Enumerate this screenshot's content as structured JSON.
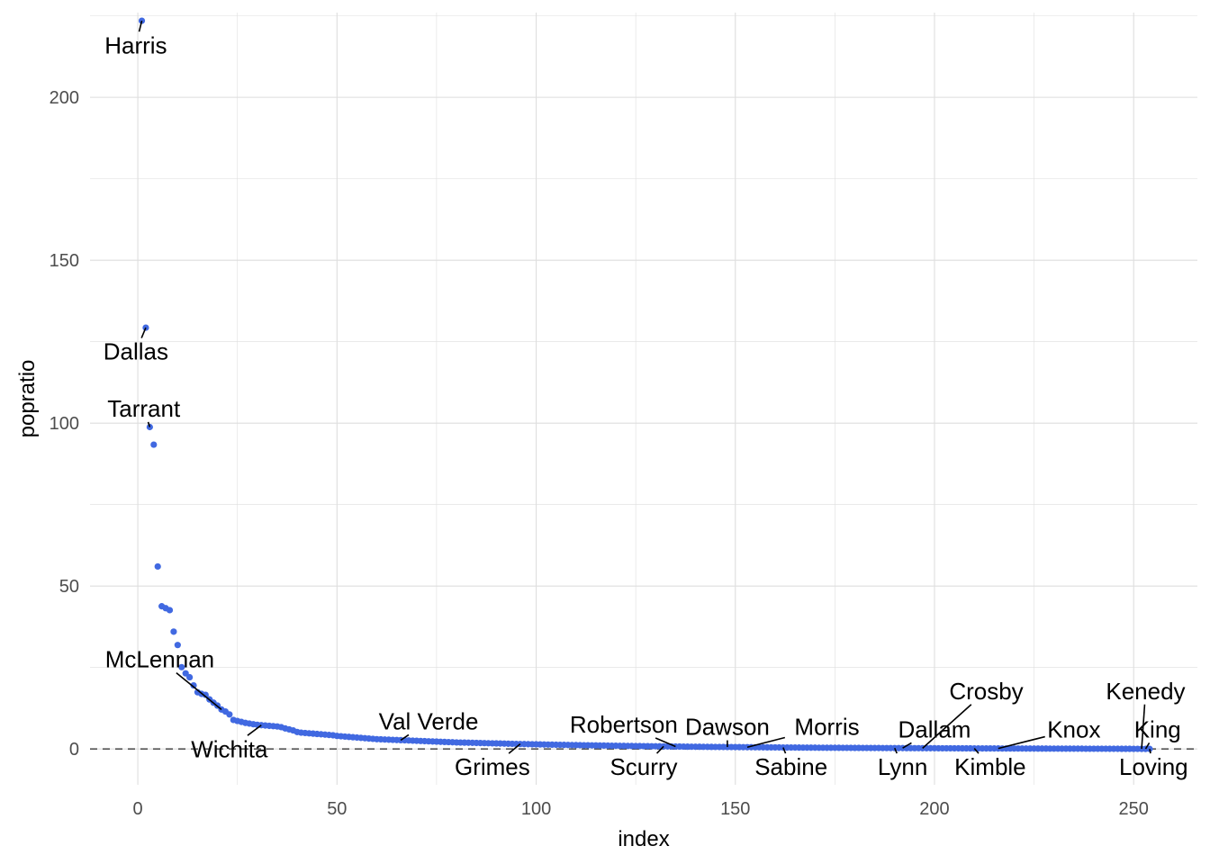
{
  "chart_data": {
    "type": "scatter",
    "title": "",
    "xlabel": "index",
    "ylabel": "popratio",
    "xlim": [
      -12,
      266
    ],
    "ylim": [
      -11,
      226
    ],
    "x_ticks": [
      0,
      50,
      100,
      150,
      200,
      250
    ],
    "y_ticks": [
      0,
      50,
      100,
      150,
      200
    ],
    "x_tick_labels": [
      "0",
      "50",
      "100",
      "150",
      "200",
      "250"
    ],
    "y_tick_labels": [
      "0",
      "50",
      "100",
      "150",
      "200"
    ],
    "grid": true,
    "reference_line": {
      "y": 0,
      "style": "dashed"
    },
    "point_color": "#4169E1",
    "series": [
      {
        "points": [
          [
            1,
            223.5
          ],
          [
            2,
            129.3
          ],
          [
            3,
            98.8
          ],
          [
            4,
            93.4
          ],
          [
            5,
            56.0
          ],
          [
            6,
            43.8
          ],
          [
            7,
            43.2
          ],
          [
            8,
            42.6
          ],
          [
            9,
            36.0
          ],
          [
            10,
            31.9
          ],
          [
            11,
            25.1
          ],
          [
            12,
            23.2
          ],
          [
            13,
            22.0
          ],
          [
            14,
            19.5
          ],
          [
            15,
            17.4
          ],
          [
            16,
            16.9
          ],
          [
            17,
            16.6
          ],
          [
            18,
            15.2
          ],
          [
            19,
            14.2
          ],
          [
            20,
            13.3
          ],
          [
            21,
            12.1
          ],
          [
            22,
            11.5
          ],
          [
            23,
            10.6
          ],
          [
            24,
            8.9
          ],
          [
            25,
            8.6
          ],
          [
            26,
            8.3
          ],
          [
            27,
            8.0
          ],
          [
            28,
            7.8
          ],
          [
            29,
            7.6
          ],
          [
            30,
            7.4
          ],
          [
            31,
            7.3
          ],
          [
            32,
            7.2
          ],
          [
            33,
            7.1
          ],
          [
            34,
            7.0
          ],
          [
            35,
            6.9
          ],
          [
            36,
            6.7
          ],
          [
            37,
            6.3
          ],
          [
            38,
            6.0
          ],
          [
            39,
            5.7
          ],
          [
            40,
            5.2
          ],
          [
            41,
            5.0
          ],
          [
            42,
            4.9
          ],
          [
            43,
            4.8
          ],
          [
            44,
            4.7
          ],
          [
            45,
            4.6
          ],
          [
            46,
            4.5
          ],
          [
            47,
            4.4
          ],
          [
            48,
            4.3
          ],
          [
            49,
            4.2
          ],
          [
            50,
            4.0
          ],
          [
            51,
            3.9
          ],
          [
            52,
            3.8
          ],
          [
            53,
            3.7
          ],
          [
            54,
            3.6
          ],
          [
            55,
            3.5
          ],
          [
            56,
            3.4
          ],
          [
            57,
            3.3
          ],
          [
            58,
            3.2
          ],
          [
            59,
            3.1
          ],
          [
            60,
            3.0
          ],
          [
            61,
            2.95
          ],
          [
            62,
            2.9
          ],
          [
            63,
            2.85
          ],
          [
            64,
            2.8
          ],
          [
            65,
            2.75
          ],
          [
            66,
            2.7
          ],
          [
            67,
            2.65
          ],
          [
            68,
            2.6
          ],
          [
            69,
            2.55
          ],
          [
            70,
            2.5
          ],
          [
            71,
            2.45
          ],
          [
            72,
            2.4
          ],
          [
            73,
            2.35
          ],
          [
            74,
            2.3
          ],
          [
            75,
            2.25
          ],
          [
            76,
            2.2
          ],
          [
            77,
            2.15
          ],
          [
            78,
            2.1
          ],
          [
            79,
            2.05
          ],
          [
            80,
            2.0
          ],
          [
            81,
            1.97
          ],
          [
            82,
            1.94
          ],
          [
            83,
            1.91
          ],
          [
            84,
            1.88
          ],
          [
            85,
            1.85
          ],
          [
            86,
            1.82
          ],
          [
            87,
            1.79
          ],
          [
            88,
            1.76
          ],
          [
            89,
            1.73
          ],
          [
            90,
            1.7
          ],
          [
            91,
            1.67
          ],
          [
            92,
            1.64
          ],
          [
            93,
            1.61
          ],
          [
            94,
            1.58
          ],
          [
            95,
            1.55
          ],
          [
            96,
            1.52
          ],
          [
            97,
            1.5
          ],
          [
            98,
            1.47
          ],
          [
            99,
            1.44
          ],
          [
            100,
            1.42
          ],
          [
            101,
            1.39
          ],
          [
            102,
            1.37
          ],
          [
            103,
            1.34
          ],
          [
            104,
            1.32
          ],
          [
            105,
            1.29
          ],
          [
            106,
            1.27
          ],
          [
            107,
            1.25
          ],
          [
            108,
            1.22
          ],
          [
            109,
            1.2
          ],
          [
            110,
            1.18
          ],
          [
            111,
            1.16
          ],
          [
            112,
            1.14
          ],
          [
            113,
            1.12
          ],
          [
            114,
            1.1
          ],
          [
            115,
            1.08
          ],
          [
            116,
            1.06
          ],
          [
            117,
            1.04
          ],
          [
            118,
            1.02
          ],
          [
            119,
            1.0
          ],
          [
            120,
            0.98
          ],
          [
            121,
            0.96
          ],
          [
            122,
            0.95
          ],
          [
            123,
            0.93
          ],
          [
            124,
            0.91
          ],
          [
            125,
            0.9
          ],
          [
            126,
            0.88
          ],
          [
            127,
            0.86
          ],
          [
            128,
            0.85
          ],
          [
            129,
            0.83
          ],
          [
            130,
            0.82
          ],
          [
            131,
            0.8
          ],
          [
            132,
            0.79
          ],
          [
            133,
            0.77
          ],
          [
            134,
            0.76
          ],
          [
            135,
            0.74
          ],
          [
            136,
            0.73
          ],
          [
            137,
            0.72
          ],
          [
            138,
            0.7
          ],
          [
            139,
            0.69
          ],
          [
            140,
            0.68
          ],
          [
            141,
            0.67
          ],
          [
            142,
            0.65
          ],
          [
            143,
            0.64
          ],
          [
            144,
            0.63
          ],
          [
            145,
            0.62
          ],
          [
            146,
            0.61
          ],
          [
            147,
            0.6
          ],
          [
            148,
            0.59
          ],
          [
            149,
            0.58
          ],
          [
            150,
            0.57
          ],
          [
            151,
            0.56
          ],
          [
            152,
            0.55
          ],
          [
            153,
            0.54
          ],
          [
            154,
            0.53
          ],
          [
            155,
            0.52
          ],
          [
            156,
            0.51
          ],
          [
            157,
            0.5
          ],
          [
            158,
            0.49
          ],
          [
            159,
            0.48
          ],
          [
            160,
            0.47
          ],
          [
            161,
            0.46
          ],
          [
            162,
            0.45
          ],
          [
            163,
            0.45
          ],
          [
            164,
            0.44
          ],
          [
            165,
            0.43
          ],
          [
            166,
            0.42
          ],
          [
            167,
            0.41
          ],
          [
            168,
            0.41
          ],
          [
            169,
            0.4
          ],
          [
            170,
            0.39
          ],
          [
            171,
            0.38
          ],
          [
            172,
            0.38
          ],
          [
            173,
            0.37
          ],
          [
            174,
            0.36
          ],
          [
            175,
            0.36
          ],
          [
            176,
            0.35
          ],
          [
            177,
            0.34
          ],
          [
            178,
            0.34
          ],
          [
            179,
            0.33
          ],
          [
            180,
            0.32
          ],
          [
            181,
            0.32
          ],
          [
            182,
            0.31
          ],
          [
            183,
            0.31
          ],
          [
            184,
            0.3
          ],
          [
            185,
            0.29
          ],
          [
            186,
            0.29
          ],
          [
            187,
            0.28
          ],
          [
            188,
            0.28
          ],
          [
            189,
            0.27
          ],
          [
            190,
            0.27
          ],
          [
            191,
            0.26
          ],
          [
            192,
            0.26
          ],
          [
            193,
            0.25
          ],
          [
            194,
            0.25
          ],
          [
            195,
            0.24
          ],
          [
            196,
            0.24
          ],
          [
            197,
            0.23
          ],
          [
            198,
            0.23
          ],
          [
            199,
            0.22
          ],
          [
            200,
            0.22
          ],
          [
            201,
            0.21
          ],
          [
            202,
            0.21
          ],
          [
            203,
            0.2
          ],
          [
            204,
            0.2
          ],
          [
            205,
            0.19
          ],
          [
            206,
            0.19
          ],
          [
            207,
            0.18
          ],
          [
            208,
            0.18
          ],
          [
            209,
            0.18
          ],
          [
            210,
            0.17
          ],
          [
            211,
            0.17
          ],
          [
            212,
            0.16
          ],
          [
            213,
            0.16
          ],
          [
            214,
            0.16
          ],
          [
            215,
            0.15
          ],
          [
            216,
            0.15
          ],
          [
            217,
            0.14
          ],
          [
            218,
            0.14
          ],
          [
            219,
            0.14
          ],
          [
            220,
            0.13
          ],
          [
            221,
            0.13
          ],
          [
            222,
            0.13
          ],
          [
            223,
            0.12
          ],
          [
            224,
            0.12
          ],
          [
            225,
            0.12
          ],
          [
            226,
            0.11
          ],
          [
            227,
            0.11
          ],
          [
            228,
            0.11
          ],
          [
            229,
            0.1
          ],
          [
            230,
            0.1
          ],
          [
            231,
            0.1
          ],
          [
            232,
            0.09
          ],
          [
            233,
            0.09
          ],
          [
            234,
            0.09
          ],
          [
            235,
            0.08
          ],
          [
            236,
            0.08
          ],
          [
            237,
            0.08
          ],
          [
            238,
            0.07
          ],
          [
            239,
            0.07
          ],
          [
            240,
            0.07
          ],
          [
            241,
            0.06
          ],
          [
            242,
            0.06
          ],
          [
            243,
            0.06
          ],
          [
            244,
            0.05
          ],
          [
            245,
            0.05
          ],
          [
            246,
            0.05
          ],
          [
            247,
            0.04
          ],
          [
            248,
            0.04
          ],
          [
            249,
            0.04
          ],
          [
            250,
            0.03
          ],
          [
            251,
            0.03
          ],
          [
            252,
            0.02
          ],
          [
            253,
            0.02
          ],
          [
            254,
            0.01
          ]
        ]
      }
    ],
    "annotations": [
      {
        "text": "Harris",
        "point": [
          1,
          223.5
        ],
        "label": [
          -0.5,
          216.0
        ]
      },
      {
        "text": "Dallas",
        "point": [
          2,
          129.3
        ],
        "label": [
          -0.5,
          122.0
        ]
      },
      {
        "text": "Tarrant",
        "point": [
          3,
          98.8
        ],
        "label": [
          1.5,
          104.5
        ]
      },
      {
        "text": "McLennan",
        "point": [
          21,
          12.1
        ],
        "label": [
          5.5,
          27.5
        ]
      },
      {
        "text": "Wichita",
        "point": [
          31,
          7.3
        ],
        "label": [
          23,
          0
        ]
      },
      {
        "text": "Val Verde",
        "point": [
          66,
          2.7
        ],
        "label": [
          73,
          8.5
        ]
      },
      {
        "text": "Grimes",
        "point": [
          96,
          1.52
        ],
        "label": [
          89,
          -5.5
        ]
      },
      {
        "text": "Robertson",
        "point": [
          135,
          0.74
        ],
        "label": [
          122,
          7.5
        ]
      },
      {
        "text": "Scurry",
        "point": [
          132,
          0.79
        ],
        "label": [
          127,
          -5.5
        ]
      },
      {
        "text": "Dawson",
        "point": [
          148,
          0.59
        ],
        "label": [
          148,
          6.8
        ]
      },
      {
        "text": "Morris",
        "point": [
          153,
          0.54
        ],
        "label": [
          173,
          6.8
        ]
      },
      {
        "text": "Sabine",
        "point": [
          162,
          0.45
        ],
        "label": [
          164,
          -5.5
        ]
      },
      {
        "text": "Dallam",
        "point": [
          192,
          0.26
        ],
        "label": [
          200,
          6.0
        ]
      },
      {
        "text": "Lynn",
        "point": [
          190,
          0.27
        ],
        "label": [
          192,
          -5.5
        ]
      },
      {
        "text": "Crosby",
        "point": [
          197,
          0.23
        ],
        "label": [
          213,
          17.8
        ]
      },
      {
        "text": "Kimble",
        "point": [
          210,
          0.17
        ],
        "label": [
          214,
          -5.5
        ]
      },
      {
        "text": "Knox",
        "point": [
          216,
          0.15
        ],
        "label": [
          235,
          6.0
        ]
      },
      {
        "text": "Kenedy",
        "point": [
          252,
          0.02
        ],
        "label": [
          253,
          17.8
        ]
      },
      {
        "text": "King",
        "point": [
          253,
          0.02
        ],
        "label": [
          256,
          6.0
        ]
      },
      {
        "text": "Loving",
        "point": [
          254,
          0.01
        ],
        "label": [
          255,
          -5.5
        ]
      }
    ]
  }
}
